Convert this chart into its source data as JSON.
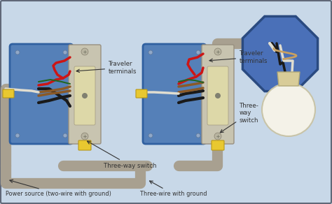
{
  "bg_color": "#c8d8e8",
  "border_color": "#606878",
  "labels": {
    "three_way_switch_1": "Three-way switch",
    "three_way_switch_2": "Three-\nway\nswitch",
    "traveler_1": "Traveler\nterminals",
    "traveler_2": "Traveler\nterminals",
    "power_source": "Power source (two-wire with ground)",
    "three_wire": "Three-wire with ground"
  },
  "label_fontsize": 6.2,
  "switch_plate_color": "#c8c4b0",
  "switch_toggle_color": "#ddd8a8",
  "box_fill_color": "#5580b8",
  "box_edge_color": "#3060a0",
  "wire_black": "#1a1a1a",
  "wire_white": "#e0ddd0",
  "wire_red": "#cc1515",
  "wire_brown": "#8b5a28",
  "wire_green": "#226622",
  "conduit_color": "#a8a090",
  "octagon_fill": "#4a70b8",
  "octagon_edge": "#2a4a80",
  "bulb_color": "#f0eed8",
  "socket_color": "#d8cc98",
  "wirenut_color": "#e8c830",
  "wirenut_edge": "#b89818"
}
